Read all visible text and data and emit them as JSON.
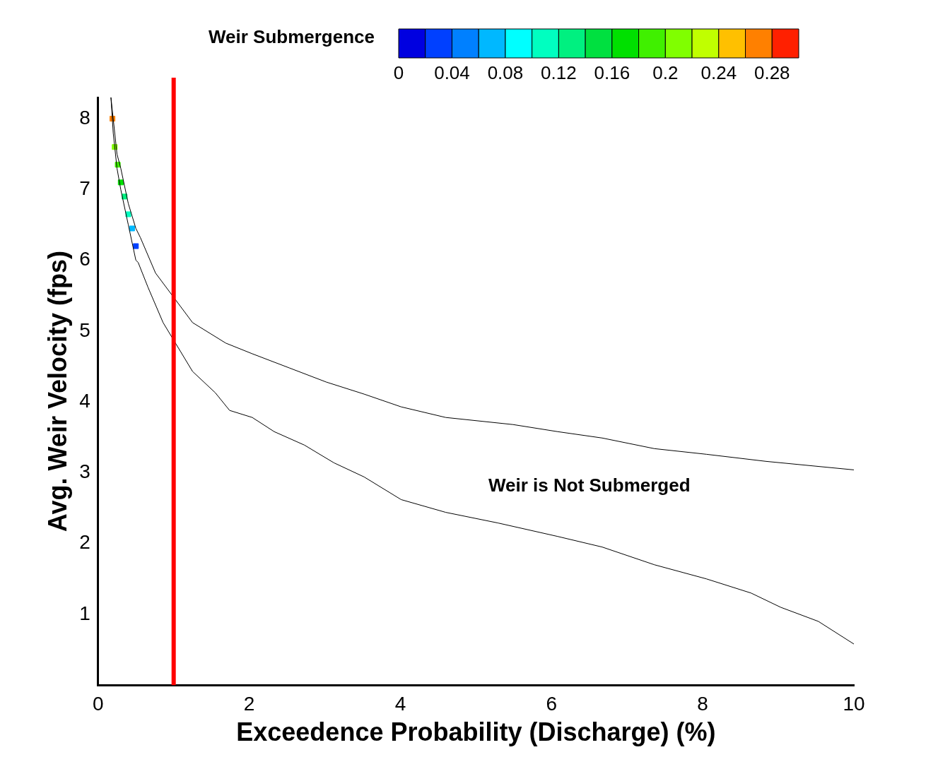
{
  "chart_data": {
    "type": "line",
    "xlabel": "Exceedence Probability (Discharge) (%)",
    "ylabel": "Avg. Weir Velocity (fps)",
    "clabel": "Weir Submergence",
    "clim": [
      0,
      0.3
    ],
    "cticks": [
      0,
      0.04,
      0.08,
      0.12,
      0.16,
      0.2,
      0.24,
      0.28
    ],
    "xlim": [
      0,
      10
    ],
    "xticks": [
      0,
      2,
      4,
      6,
      8,
      10
    ],
    "ylim": [
      0,
      8.3
    ],
    "yticks": [
      1,
      2,
      3,
      4,
      5,
      6,
      7,
      8
    ],
    "grid": false,
    "legend": false,
    "marker": "none",
    "line_style": "solid",
    "annotations": [
      "Weir is Not Submerged"
    ],
    "ref_lines": [
      {
        "axis": "x",
        "value": 1,
        "color": "#ff0000"
      }
    ],
    "series": [
      {
        "color": "#000000",
        "x": [
          0.17,
          0.2,
          0.25,
          0.3,
          0.4,
          0.5,
          0.56,
          0.76,
          1.0,
          1.25,
          1.69,
          2.04,
          2.53,
          3.02,
          3.52,
          4.01,
          4.6,
          5.49,
          6.08,
          6.67,
          7.36,
          8.05,
          8.84,
          10
        ],
        "values": [
          8.3,
          8.0,
          7.5,
          7.3,
          6.8,
          6.45,
          6.32,
          5.82,
          null,
          5.12,
          4.83,
          4.68,
          4.48,
          4.28,
          4.11,
          3.93,
          3.78,
          3.68,
          3.58,
          3.49,
          3.34,
          3.26,
          3.16,
          3.04
        ]
      },
      {
        "color": "#000000",
        "x": [
          0.17,
          0.2,
          0.25,
          0.3,
          0.4,
          0.5,
          0.53,
          0.66,
          0.86,
          1.0,
          1.25,
          1.55,
          1.74,
          2.04,
          2.33,
          2.73,
          3.12,
          3.52,
          4.01,
          4.6,
          5.29,
          6.08,
          6.67,
          7.36,
          8.05,
          8.64,
          9.03,
          9.53,
          10
        ],
        "values": [
          8.3,
          7.8,
          7.3,
          7.0,
          6.5,
          6.0,
          5.97,
          5.62,
          5.12,
          null,
          4.43,
          4.13,
          3.88,
          3.78,
          3.58,
          3.39,
          3.14,
          2.94,
          2.62,
          2.44,
          2.29,
          2.1,
          1.95,
          1.7,
          1.5,
          1.3,
          1.1,
          0.9,
          0.58
        ]
      },
      {
        "type": "scatter",
        "marker": "square",
        "x": [
          0.19,
          0.22,
          0.26,
          0.3,
          0.35,
          0.4,
          0.45,
          0.5
        ],
        "values": [
          8.0,
          7.6,
          7.35,
          7.1,
          6.9,
          6.65,
          6.45,
          6.2
        ],
        "cvalues": [
          0.27,
          0.21,
          0.19,
          0.17,
          0.13,
          0.11,
          0.07,
          0.03
        ],
        "colors": [
          "#ff8000",
          "#80ff00",
          "#40f000",
          "#00e000",
          "#00f080",
          "#00ffc0",
          "#00b8ff",
          "#0040ff"
        ]
      }
    ]
  }
}
